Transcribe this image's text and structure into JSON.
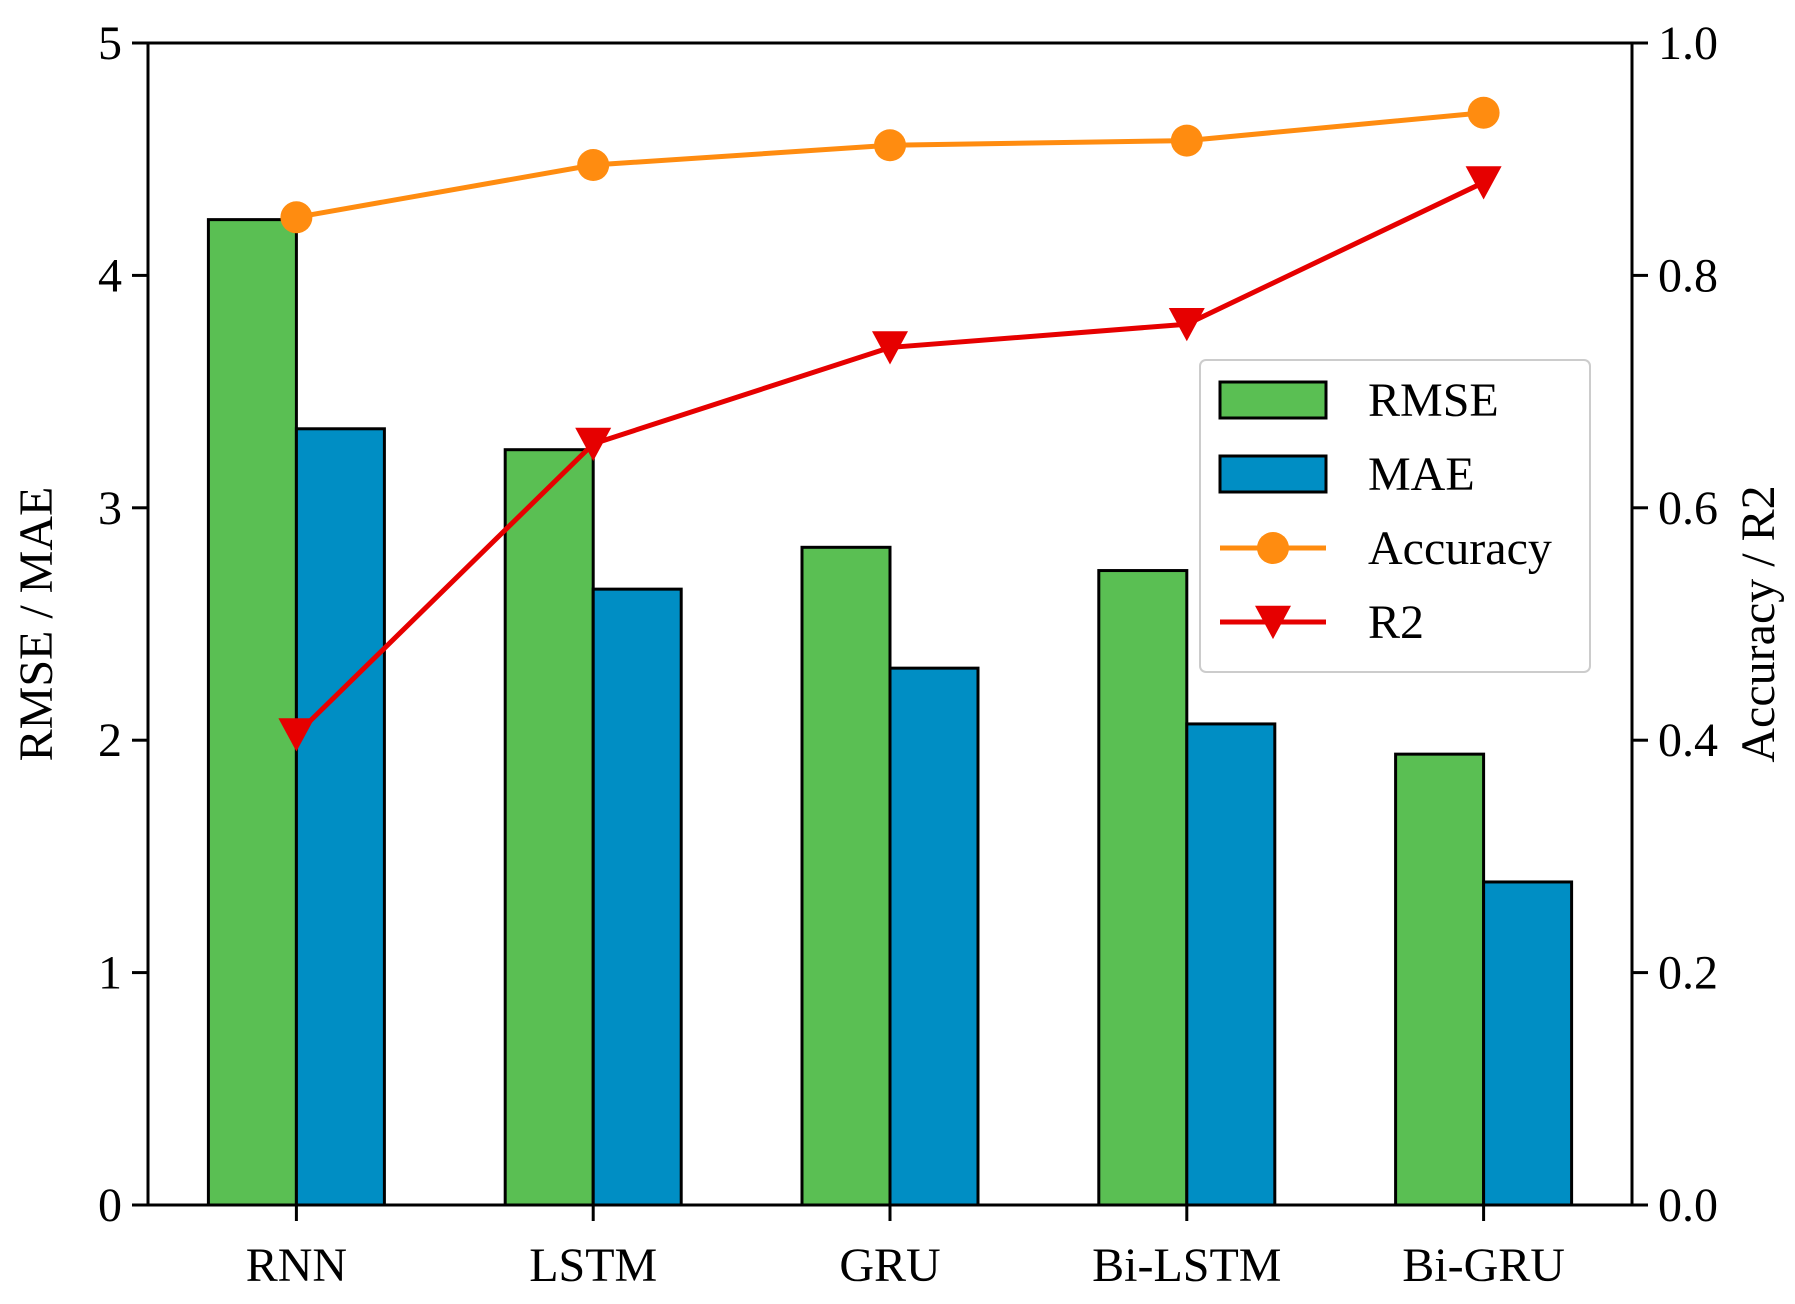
{
  "chart_data": {
    "type": "bar",
    "title": "",
    "xlabel": "",
    "ylabel": "RMSE / MAE",
    "ylabel_right": "Accuracy / R2",
    "categories": [
      "RNN",
      "LSTM",
      "GRU",
      "Bi-LSTM",
      "Bi-GRU"
    ],
    "ylim": [
      0,
      5
    ],
    "ylim_right": [
      0.0,
      1.0
    ],
    "yticks": [
      "0",
      "1",
      "2",
      "3",
      "4",
      "5"
    ],
    "yticks_right": [
      "0.0",
      "0.2",
      "0.4",
      "0.6",
      "0.8",
      "1.0"
    ],
    "grid": false,
    "legend_position": "center-right",
    "series": [
      {
        "name": "RMSE",
        "kind": "bar",
        "axis": "left",
        "color": "#5abf53",
        "values": [
          4.24,
          3.25,
          2.83,
          2.73,
          1.94
        ]
      },
      {
        "name": "MAE",
        "kind": "bar",
        "axis": "left",
        "color": "#008ec4",
        "values": [
          3.34,
          2.65,
          2.31,
          2.07,
          1.39
        ]
      },
      {
        "name": "Accuracy",
        "kind": "line",
        "marker": "circle",
        "axis": "right",
        "color": "#ff8c10",
        "values": [
          0.85,
          0.895,
          0.912,
          0.916,
          0.94
        ]
      },
      {
        "name": "R2",
        "kind": "line",
        "marker": "triangle-down",
        "axis": "right",
        "color": "#e60000",
        "values": [
          0.405,
          0.655,
          0.738,
          0.758,
          0.88
        ]
      }
    ]
  }
}
